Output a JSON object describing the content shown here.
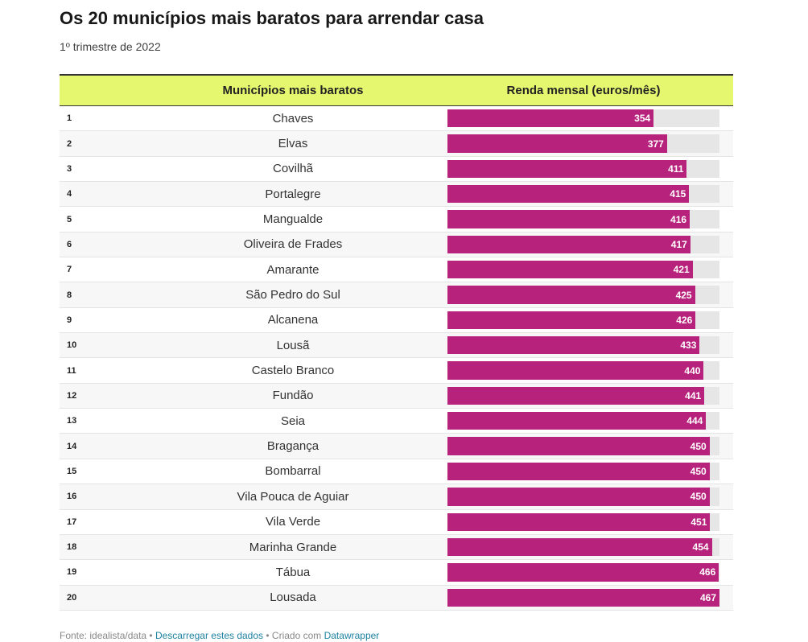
{
  "header": {
    "title": "Os 20 municípios mais baratos para arrendar casa",
    "subtitle": "1º trimestre de 2022"
  },
  "table": {
    "col_muni": "Municípios mais baratos",
    "col_renda": "Renda mensal (euros/mês)"
  },
  "chart_data": {
    "type": "table",
    "title": "Os 20 municípios mais baratos para arrendar casa",
    "subtitle": "1º trimestre de 2022",
    "columns": [
      "",
      "Municípios mais baratos",
      "Renda mensal (euros/mês)"
    ],
    "bar_color": "#b7227d",
    "bar_background": "#e6e6e6",
    "header_color": "#e5f76e",
    "bar_range": [
      0,
      467
    ],
    "rows": [
      {
        "rank": "1",
        "municipio": "Chaves",
        "renda": 354
      },
      {
        "rank": "2",
        "municipio": "Elvas",
        "renda": 377
      },
      {
        "rank": "3",
        "municipio": "Covilhã",
        "renda": 411
      },
      {
        "rank": "4",
        "municipio": "Portalegre",
        "renda": 415
      },
      {
        "rank": "5",
        "municipio": "Mangualde",
        "renda": 416
      },
      {
        "rank": "6",
        "municipio": "Oliveira de Frades",
        "renda": 417
      },
      {
        "rank": "7",
        "municipio": "Amarante",
        "renda": 421
      },
      {
        "rank": "8",
        "municipio": "São Pedro do Sul",
        "renda": 425
      },
      {
        "rank": "9",
        "municipio": "Alcanena",
        "renda": 426
      },
      {
        "rank": "10",
        "municipio": "Lousã",
        "renda": 433
      },
      {
        "rank": "11",
        "municipio": "Castelo Branco",
        "renda": 440
      },
      {
        "rank": "12",
        "municipio": "Fundão",
        "renda": 441
      },
      {
        "rank": "13",
        "municipio": "Seia",
        "renda": 444
      },
      {
        "rank": "14",
        "municipio": "Bragança",
        "renda": 450
      },
      {
        "rank": "15",
        "municipio": "Bombarral",
        "renda": 450
      },
      {
        "rank": "16",
        "municipio": "Vila Pouca de Aguiar",
        "renda": 450
      },
      {
        "rank": "17",
        "municipio": "Vila Verde",
        "renda": 451
      },
      {
        "rank": "18",
        "municipio": "Marinha Grande",
        "renda": 454
      },
      {
        "rank": "19",
        "municipio": "Tábua",
        "renda": 466
      },
      {
        "rank": "20",
        "municipio": "Lousada",
        "renda": 467
      }
    ]
  },
  "footer": {
    "source": "Fonte: idealista/data",
    "sep1": " • ",
    "download": "Descarregar estes dados",
    "sep2": " • ",
    "created": "Criado com ",
    "tool": "Datawrapper"
  }
}
